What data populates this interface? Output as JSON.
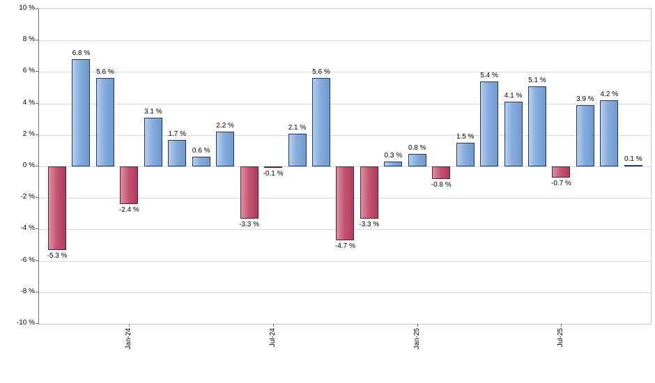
{
  "chart_data": {
    "type": "bar",
    "title": "",
    "xlabel": "",
    "ylabel": "",
    "ylim": [
      -10,
      10
    ],
    "y_tick_step": 2,
    "grid": true,
    "legend": false,
    "y_ticks": [
      "10 %",
      "8 %",
      "6 %",
      "4 %",
      "2 %",
      "0 %",
      "-2 %",
      "-4 %",
      "-6 %",
      "-8 %",
      "-10 %"
    ],
    "values": [
      -5.3,
      6.8,
      5.6,
      -2.4,
      3.1,
      1.7,
      0.6,
      2.2,
      -3.3,
      -0.1,
      2.1,
      5.6,
      -4.7,
      -3.3,
      0.3,
      0.8,
      -0.8,
      1.5,
      5.4,
      4.1,
      5.1,
      -0.7,
      3.9,
      4.2,
      0.1
    ],
    "labels": [
      "-5.3 %",
      "6.8 %",
      "5.6 %",
      "-2.4 %",
      "3.1 %",
      "1.7 %",
      "0.6 %",
      "2.2 %",
      "-3.3 %",
      "-0.1 %",
      "2.1 %",
      "5.6 %",
      "-4.7 %",
      "-3.3 %",
      "0.3 %",
      "0.8 %",
      "-0.8 %",
      "1.5 %",
      "5.4 %",
      "4.1 %",
      "5.1 %",
      "-0.7 %",
      "3.9 %",
      "4.2 %",
      "0.1 %"
    ],
    "x_axis_labels": [
      {
        "index": 3,
        "label": "Jan-24"
      },
      {
        "index": 9,
        "label": "Jul-24"
      },
      {
        "index": 15,
        "label": "Jan-25"
      },
      {
        "index": 21,
        "label": "Jul-25"
      }
    ],
    "colors": {
      "positive": {
        "light": "#b7cfeb",
        "mid": "#86acdc",
        "dark": "#6f9ad0",
        "border": "#1f3864"
      },
      "negative": {
        "light": "#da93a6",
        "mid": "#c45673",
        "dark": "#b23a5c",
        "border": "#5f1b30"
      }
    }
  }
}
